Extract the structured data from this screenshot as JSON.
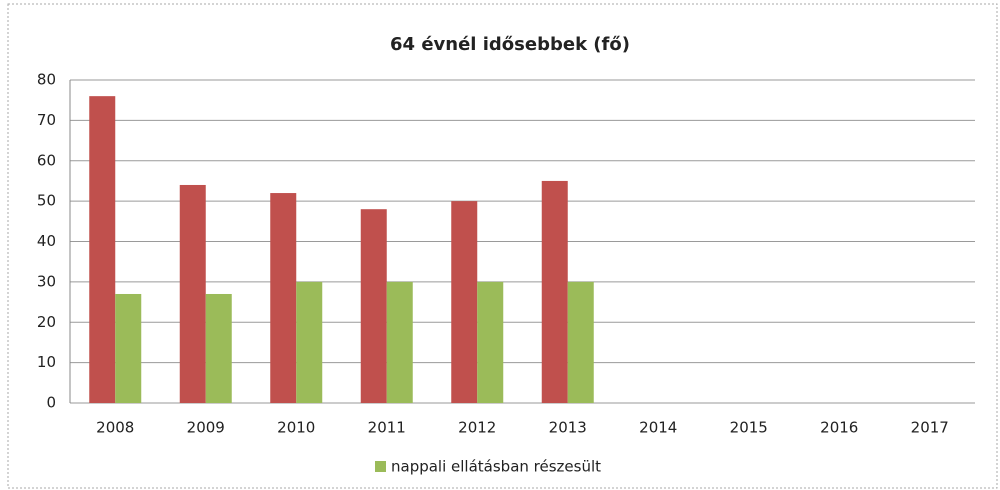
{
  "chart_data": {
    "type": "bar",
    "title": "64 évnél idősebbek (fő)",
    "categories": [
      "2008",
      "2009",
      "2010",
      "2011",
      "2012",
      "2013",
      "2014",
      "2015",
      "2016",
      "2017"
    ],
    "series": [
      {
        "color": "#c0504d",
        "values": [
          76,
          54,
          52,
          48,
          50,
          55,
          null,
          null,
          null,
          null
        ]
      },
      {
        "name": "nappali ellátásban részesült",
        "color": "#9bbb59",
        "values": [
          27,
          27,
          30,
          30,
          30,
          30,
          null,
          null,
          null,
          null
        ]
      }
    ],
    "ylim": [
      0,
      80
    ],
    "yticks": [
      0,
      10,
      20,
      30,
      40,
      50,
      60,
      70,
      80
    ],
    "grid": true,
    "legend": "bottom"
  }
}
